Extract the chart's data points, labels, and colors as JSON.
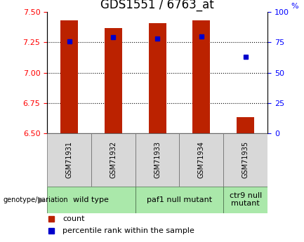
{
  "title": "GDS1551 / 6763_at",
  "samples": [
    "GSM71931",
    "GSM71932",
    "GSM71933",
    "GSM71934",
    "GSM71935"
  ],
  "bar_values": [
    7.43,
    7.37,
    7.41,
    7.43,
    6.63
  ],
  "bar_bottom": 6.5,
  "percentile_values": [
    76,
    79,
    78,
    80,
    63
  ],
  "ylim_left": [
    6.5,
    7.5
  ],
  "ylim_right": [
    0,
    100
  ],
  "yticks_left": [
    6.5,
    6.75,
    7.0,
    7.25,
    7.5
  ],
  "yticks_right": [
    0,
    25,
    50,
    75,
    100
  ],
  "bar_color": "#bb2200",
  "percentile_color": "#0000cc",
  "genotype_groups": [
    {
      "label": "wild type",
      "start": 0,
      "end": 2
    },
    {
      "label": "paf1 null mutant",
      "start": 2,
      "end": 4
    },
    {
      "label": "ctr9 null\nmutant",
      "start": 4,
      "end": 5
    }
  ],
  "genotype_label": "genotype/variation",
  "legend_count_label": "count",
  "legend_percentile_label": "percentile rank within the sample",
  "title_fontsize": 12,
  "tick_fontsize": 8,
  "sample_fontsize": 7,
  "geno_fontsize": 8
}
